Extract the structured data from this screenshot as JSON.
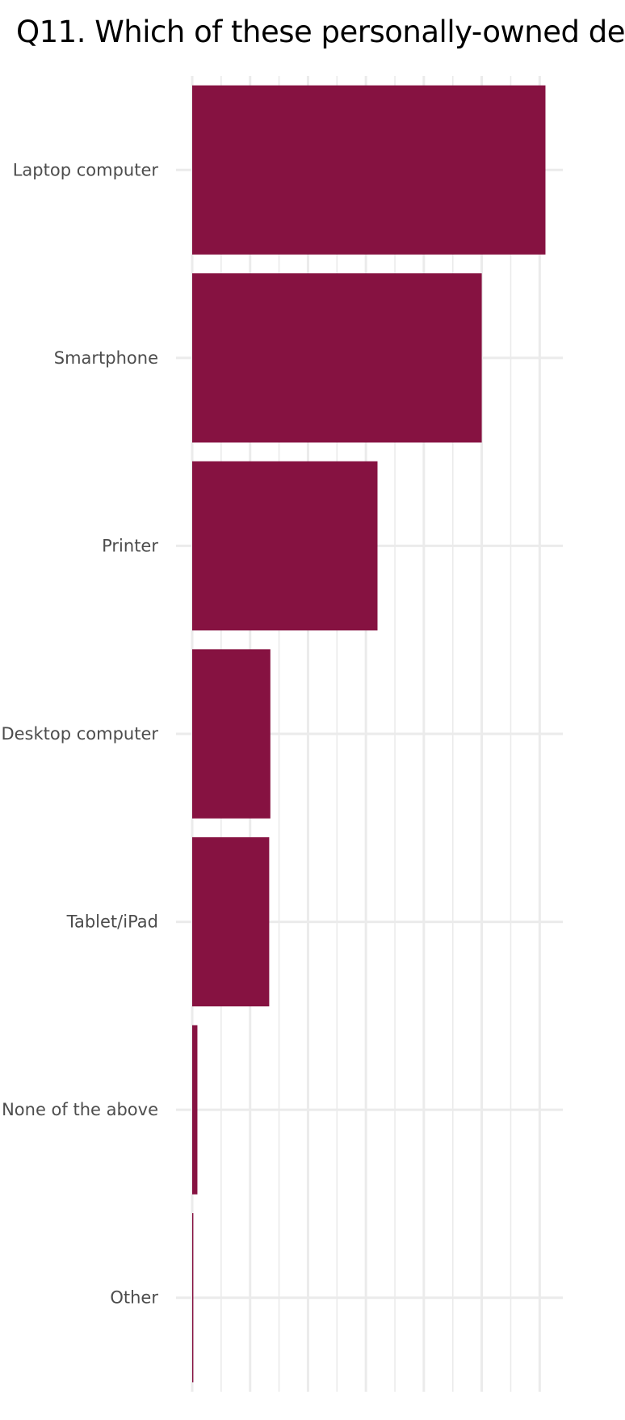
{
  "chart_data": {
    "type": "bar",
    "orientation": "horizontal",
    "title": "Q11. Which of these personally-owned de",
    "categories": [
      "Laptop computer",
      "Smartphone",
      "Printer",
      "Desktop computer",
      "Tablet/iPad",
      "None of the above",
      "Other"
    ],
    "values": [
      6.1,
      5.0,
      3.2,
      1.35,
      1.33,
      0.09,
      0.02
    ],
    "xlim": [
      0,
      6.4
    ],
    "xlabel": "",
    "ylabel": "",
    "grid": true,
    "legend": "none",
    "colors": {
      "bar": "#861241",
      "grid": "#ebebeb",
      "tick_label": "#4d4d4d",
      "title": "#000000"
    }
  }
}
